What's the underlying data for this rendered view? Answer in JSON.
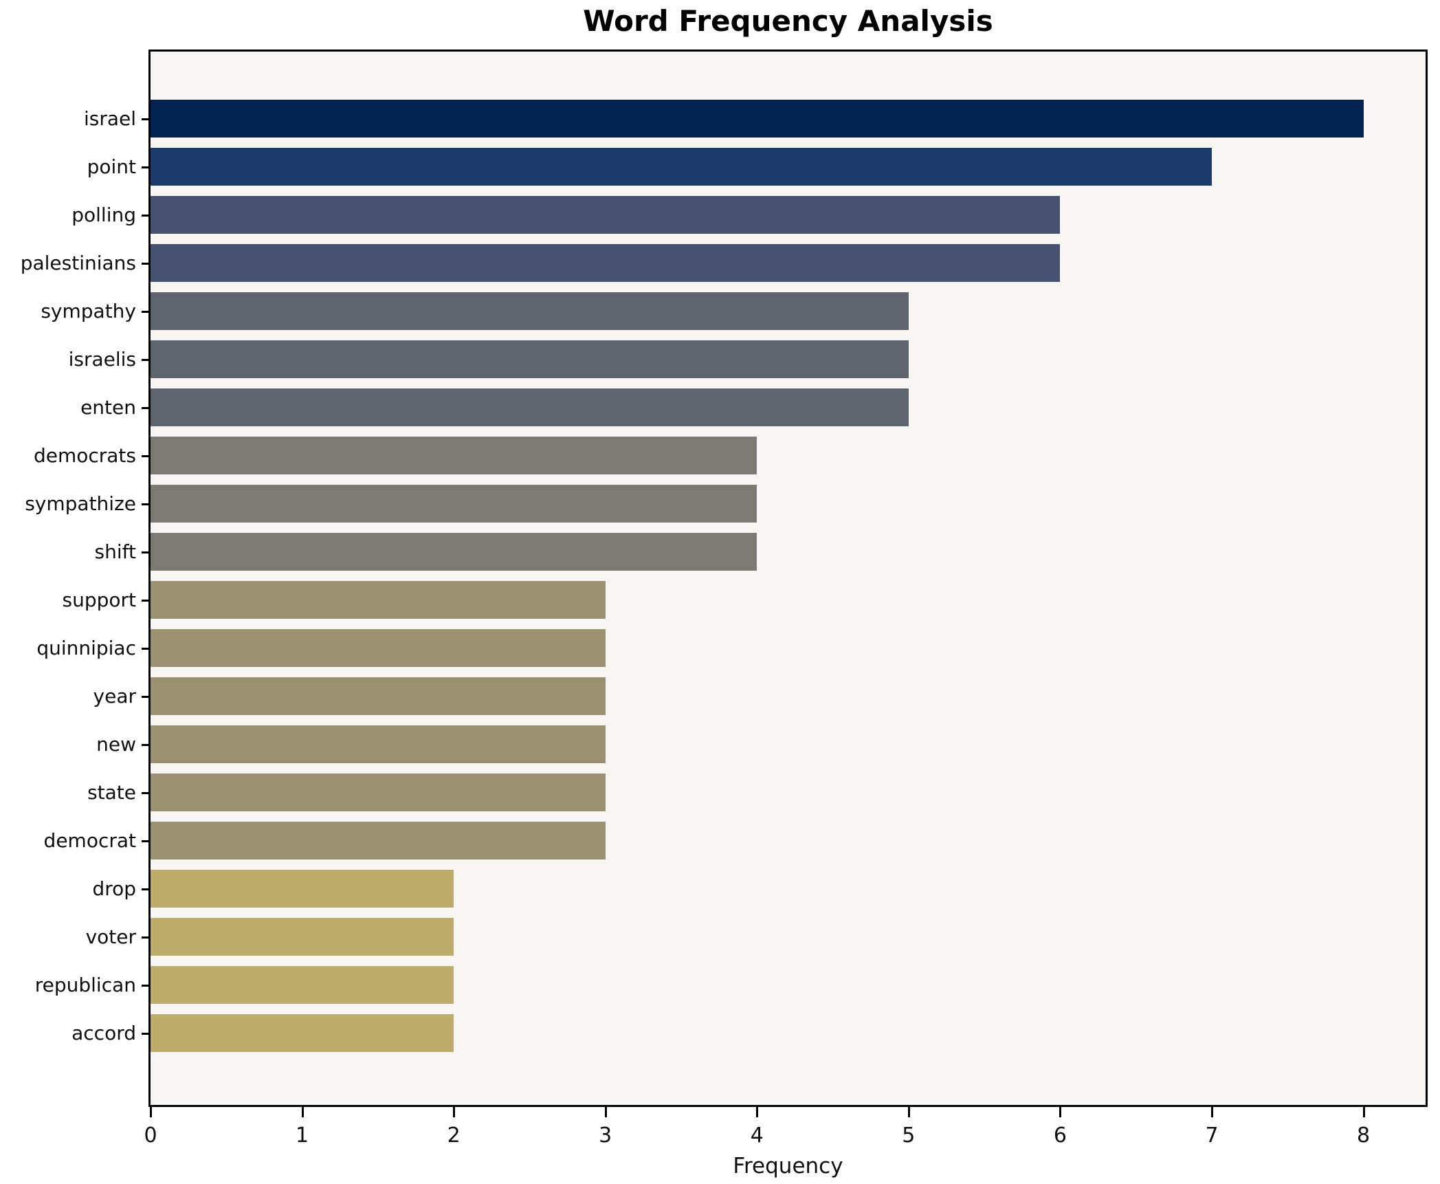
{
  "title": "Word Frequency Analysis",
  "xlabel": "Frequency",
  "colors": {
    "freq8": "#00224e",
    "freq7": "#1d3a6d",
    "freq6": "#46516f",
    "freq5": "#5f636e",
    "freq4": "#7c7b73",
    "freq3": "#999172",
    "freq2": "#bdad6a",
    "plot_background": "#f7f6f4",
    "frame": "#000000",
    "text": "#0f0f0f"
  },
  "chart_data": {
    "type": "bar",
    "orientation": "horizontal",
    "title": "Word Frequency Analysis",
    "xlabel": "Frequency",
    "ylabel": "",
    "categories": [
      "israel",
      "point",
      "polling",
      "palestinians",
      "sympathy",
      "israelis",
      "enten",
      "democrats",
      "sympathize",
      "shift",
      "support",
      "quinnipiac",
      "year",
      "new",
      "state",
      "democrat",
      "drop",
      "voter",
      "republican",
      "accord"
    ],
    "values": [
      8,
      7,
      6,
      6,
      5,
      5,
      5,
      4,
      4,
      4,
      3,
      3,
      3,
      3,
      3,
      3,
      2,
      2,
      2,
      2
    ],
    "bar_colors": [
      "#00224e",
      "#1d3a6d",
      "#46516f",
      "#46516f",
      "#5f636e",
      "#5f636e",
      "#5f636e",
      "#7c7b73",
      "#7c7b73",
      "#7c7b73",
      "#999172",
      "#999172",
      "#999172",
      "#999172",
      "#999172",
      "#999172",
      "#bdad6a",
      "#bdad6a",
      "#bdad6a",
      "#bdad6a"
    ],
    "x_ticks": [
      0,
      1,
      2,
      3,
      4,
      5,
      6,
      7,
      8
    ],
    "xlim": [
      0,
      8.41
    ],
    "grid": false,
    "legend": null
  }
}
